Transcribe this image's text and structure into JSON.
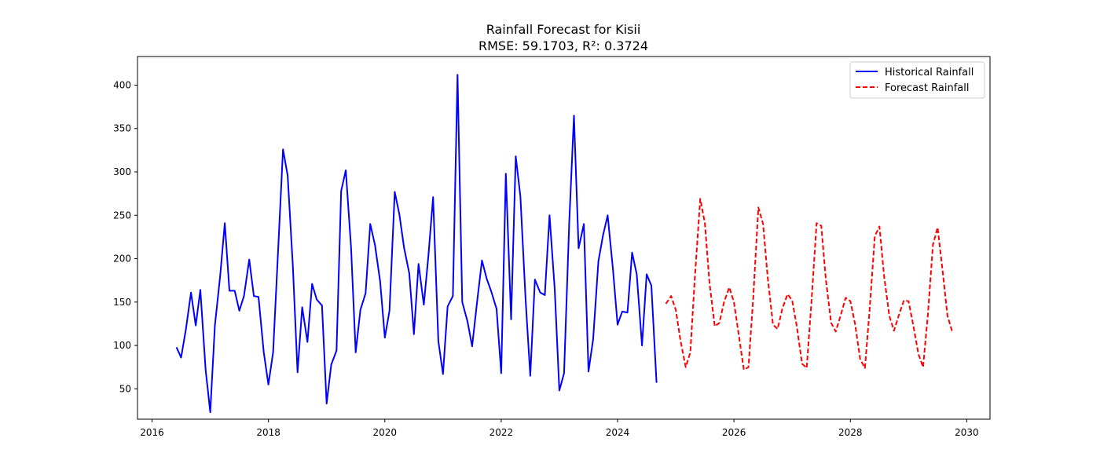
{
  "chart_data": {
    "type": "line",
    "title": "Rainfall Forecast for Kisii",
    "subtitle": "RMSE: 59.1703, R²: 0.3724",
    "xlabel": "",
    "ylabel": "",
    "xlim": [
      2015.75,
      2030.4
    ],
    "ylim": [
      15,
      433
    ],
    "grid": false,
    "legend_position": "top-right",
    "x_ticks": [
      2016,
      2018,
      2020,
      2022,
      2024,
      2026,
      2028,
      2030
    ],
    "y_ticks": [
      50,
      100,
      150,
      200,
      250,
      300,
      350,
      400
    ],
    "series": [
      {
        "name": "Historical Rainfall",
        "color": "#0000ff",
        "style": "solid",
        "x": [
          2016.42,
          2016.5,
          2016.58,
          2016.67,
          2016.75,
          2016.83,
          2016.92,
          2017.0,
          2017.08,
          2017.17,
          2017.25,
          2017.33,
          2017.42,
          2017.5,
          2017.58,
          2017.67,
          2017.75,
          2017.83,
          2017.92,
          2018.0,
          2018.08,
          2018.17,
          2018.25,
          2018.33,
          2018.42,
          2018.5,
          2018.58,
          2018.67,
          2018.75,
          2018.83,
          2018.92,
          2019.0,
          2019.08,
          2019.17,
          2019.25,
          2019.33,
          2019.42,
          2019.5,
          2019.58,
          2019.67,
          2019.75,
          2019.83,
          2019.92,
          2020.0,
          2020.08,
          2020.17,
          2020.25,
          2020.33,
          2020.42,
          2020.5,
          2020.58,
          2020.67,
          2020.75,
          2020.83,
          2020.92,
          2021.0,
          2021.08,
          2021.17,
          2021.25,
          2021.33,
          2021.42,
          2021.5,
          2021.58,
          2021.67,
          2021.75,
          2021.83,
          2021.92,
          2022.0,
          2022.08,
          2022.17,
          2022.25,
          2022.33,
          2022.42,
          2022.5,
          2022.58,
          2022.67,
          2022.75,
          2022.83,
          2022.92,
          2023.0,
          2023.08,
          2023.17,
          2023.25,
          2023.33,
          2023.42,
          2023.5,
          2023.58,
          2023.67,
          2023.75,
          2023.83,
          2023.92,
          2024.0,
          2024.08,
          2024.17,
          2024.25,
          2024.33,
          2024.42,
          2024.5,
          2024.58,
          2024.67
        ],
        "values": [
          98,
          86,
          118,
          161,
          123,
          164,
          72,
          23,
          123,
          180,
          241,
          163,
          163,
          140,
          157,
          199,
          157,
          156,
          92,
          55,
          92,
          214,
          326,
          296,
          192,
          69,
          144,
          104,
          171,
          153,
          146,
          33,
          78,
          94,
          278,
          302,
          213,
          92,
          141,
          160,
          240,
          216,
          174,
          109,
          140,
          277,
          251,
          213,
          183,
          113,
          194,
          147,
          204,
          271,
          105,
          67,
          145,
          157,
          412,
          150,
          128,
          99,
          147,
          198,
          177,
          162,
          142,
          68,
          298,
          130,
          318,
          272,
          152,
          65,
          176,
          161,
          158,
          250,
          165,
          48,
          68,
          242,
          365,
          212,
          240,
          70,
          107,
          197,
          227,
          250,
          188,
          124,
          139,
          138,
          207,
          182,
          100,
          182,
          169,
          57
        ]
      },
      {
        "name": "Forecast Rainfall",
        "color": "#ff0000",
        "style": "dashed",
        "x": [
          2024.83,
          2024.92,
          2025.0,
          2025.08,
          2025.17,
          2025.25,
          2025.33,
          2025.42,
          2025.5,
          2025.58,
          2025.67,
          2025.75,
          2025.83,
          2025.92,
          2026.0,
          2026.08,
          2026.17,
          2026.25,
          2026.33,
          2026.42,
          2026.5,
          2026.58,
          2026.67,
          2026.75,
          2026.83,
          2026.92,
          2027.0,
          2027.08,
          2027.17,
          2027.25,
          2027.33,
          2027.42,
          2027.5,
          2027.58,
          2027.67,
          2027.75,
          2027.83,
          2027.92,
          2028.0,
          2028.08,
          2028.17,
          2028.25,
          2028.33,
          2028.42,
          2028.5,
          2028.58,
          2028.67,
          2028.75,
          2028.83,
          2028.92,
          2029.0,
          2029.08,
          2029.17,
          2029.25,
          2029.33,
          2029.42,
          2029.5,
          2029.58,
          2029.67,
          2029.75
        ],
        "values": [
          148,
          157,
          141,
          106,
          75,
          92,
          180,
          269,
          241,
          172,
          122,
          126,
          150,
          167,
          150,
          113,
          72,
          75,
          154,
          259,
          240,
          178,
          124,
          119,
          142,
          159,
          152,
          122,
          79,
          74,
          148,
          241,
          238,
          176,
          126,
          116,
          134,
          155,
          151,
          125,
          84,
          74,
          140,
          226,
          237,
          180,
          134,
          117,
          134,
          152,
          151,
          124,
          90,
          75,
          134,
          216,
          236,
          189,
          134,
          116
        ]
      }
    ]
  }
}
